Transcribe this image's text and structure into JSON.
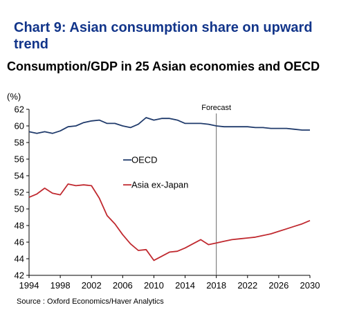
{
  "heading": "Chart 9: Asian consumption share on upward trend",
  "source": "Source : Oxford Economics/Haver Analytics",
  "chart_data": {
    "type": "line",
    "title": "Consumption/GDP in 25 Asian economies and OECD",
    "ylabel": "(%)",
    "xlabel": "",
    "xlim": [
      1994,
      2030
    ],
    "ylim": [
      42,
      62
    ],
    "xticks": [
      1994,
      1998,
      2002,
      2006,
      2010,
      2014,
      2018,
      2022,
      2026,
      2030
    ],
    "yticks": [
      42,
      44,
      46,
      48,
      50,
      52,
      54,
      56,
      58,
      60,
      62
    ],
    "grid": false,
    "legend_position": "middle-left",
    "annotation": {
      "label": "Forecast",
      "x": 2018
    },
    "series": [
      {
        "name": "OECD",
        "color": "#1f3a6b",
        "x": [
          1994,
          1995,
          1996,
          1997,
          1998,
          1999,
          2000,
          2001,
          2002,
          2003,
          2004,
          2005,
          2006,
          2007,
          2008,
          2009,
          2010,
          2011,
          2012,
          2013,
          2014,
          2015,
          2016,
          2017,
          2018,
          2019,
          2020,
          2021,
          2022,
          2023,
          2024,
          2025,
          2026,
          2027,
          2028,
          2029,
          2030
        ],
        "values": [
          59.3,
          59.1,
          59.3,
          59.1,
          59.4,
          59.9,
          60.0,
          60.4,
          60.6,
          60.7,
          60.3,
          60.3,
          60.0,
          59.8,
          60.2,
          61.0,
          60.7,
          60.9,
          60.9,
          60.7,
          60.3,
          60.3,
          60.3,
          60.2,
          60.0,
          59.9,
          59.9,
          59.9,
          59.9,
          59.8,
          59.8,
          59.7,
          59.7,
          59.7,
          59.6,
          59.5,
          59.5
        ]
      },
      {
        "name": "Asia ex-Japan",
        "color": "#c0292f",
        "x": [
          1994,
          1995,
          1996,
          1997,
          1998,
          1999,
          2000,
          2001,
          2002,
          2003,
          2004,
          2005,
          2006,
          2007,
          2008,
          2009,
          2010,
          2011,
          2012,
          2013,
          2014,
          2015,
          2016,
          2017,
          2018,
          2019,
          2020,
          2021,
          2022,
          2023,
          2024,
          2025,
          2026,
          2027,
          2028,
          2029,
          2030
        ],
        "values": [
          51.4,
          51.8,
          52.5,
          51.9,
          51.7,
          53.0,
          52.8,
          52.9,
          52.8,
          51.3,
          49.2,
          48.2,
          46.9,
          45.8,
          45.0,
          45.1,
          43.8,
          44.3,
          44.8,
          44.9,
          45.3,
          45.8,
          46.3,
          45.7,
          45.9,
          46.1,
          46.3,
          46.4,
          46.5,
          46.6,
          46.8,
          47.0,
          47.3,
          47.6,
          47.9,
          48.2,
          48.6
        ]
      }
    ]
  }
}
